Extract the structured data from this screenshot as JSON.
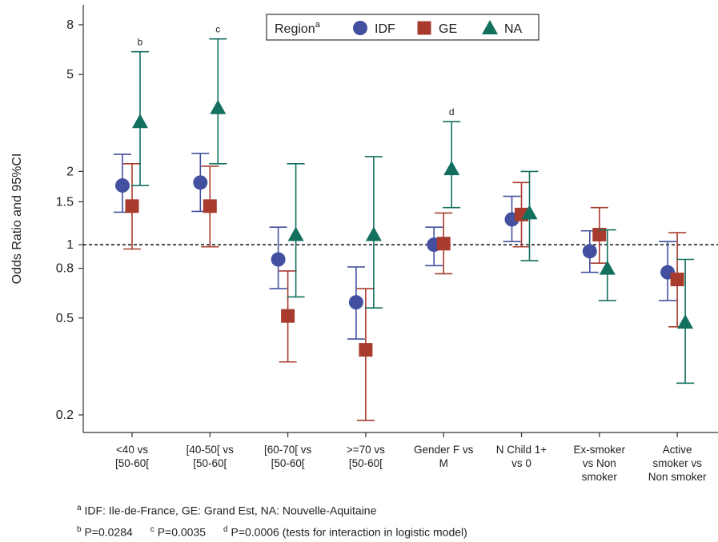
{
  "chart_data": {
    "type": "scatter",
    "ylabel": "Odds Ratio and 95%CI",
    "xlabel": "",
    "yscale": "log",
    "ylim": [
      0.17,
      9.5
    ],
    "yticks": [
      0.2,
      0.5,
      0.8,
      1,
      1.5,
      2,
      5,
      8
    ],
    "reference_line": 1,
    "categories": [
      [
        "<40 vs",
        "[50-60["
      ],
      [
        "[40-50[ vs",
        "[50-60["
      ],
      [
        "[60-70[ vs",
        "[50-60["
      ],
      [
        ">=70 vs",
        "[50-60["
      ],
      [
        "Gender F vs",
        "M"
      ],
      [
        "N Child 1+",
        "vs 0"
      ],
      [
        "Ex-smoker",
        "vs Non",
        "smoker"
      ],
      [
        "Active",
        "smoker vs",
        "Non smoker"
      ]
    ],
    "series": [
      {
        "name": "IDF",
        "color": "#4350a0",
        "marker": "circle",
        "values": [
          1.75,
          1.8,
          0.87,
          0.58,
          1.0,
          1.27,
          0.94,
          0.77
        ],
        "ci_low": [
          1.36,
          1.37,
          0.66,
          0.41,
          0.82,
          1.03,
          0.77,
          0.59
        ],
        "ci_high": [
          2.35,
          2.37,
          1.18,
          0.81,
          1.18,
          1.58,
          1.14,
          1.03
        ]
      },
      {
        "name": "GE",
        "color": "#a83b2e",
        "marker": "square",
        "values": [
          1.44,
          1.44,
          0.51,
          0.37,
          1.01,
          1.33,
          1.1,
          0.72
        ],
        "ci_low": [
          0.96,
          0.98,
          0.33,
          0.19,
          0.76,
          0.98,
          0.84,
          0.46
        ],
        "ci_high": [
          2.15,
          2.1,
          0.78,
          0.66,
          1.35,
          1.8,
          1.42,
          1.12
        ]
      },
      {
        "name": "NA",
        "color": "#13705f",
        "marker": "triangle",
        "values": [
          3.2,
          3.65,
          1.1,
          1.1,
          2.05,
          1.35,
          0.8,
          0.48
        ],
        "ci_low": [
          1.75,
          2.15,
          0.61,
          0.55,
          1.42,
          0.86,
          0.59,
          0.27
        ],
        "ci_high": [
          6.2,
          7.0,
          2.15,
          2.3,
          3.2,
          2.0,
          1.15,
          0.87
        ]
      }
    ],
    "significance_marks": [
      {
        "category_index": 0,
        "series": "NA",
        "text": "b"
      },
      {
        "category_index": 1,
        "series": "NA",
        "text": "c"
      },
      {
        "category_index": 4,
        "series": "NA",
        "text": "d"
      }
    ],
    "legend": {
      "title": "Region",
      "title_sup": "a",
      "placement": "top-center",
      "entries": [
        "IDF",
        "GE",
        "NA"
      ]
    },
    "footnotes": {
      "a_sup": "a",
      "a_text": "IDF: Ile-de-France, GE: Grand Est, NA: Nouvelle-Aquitaine",
      "b_sup": "b",
      "b_text": "P=0.0284",
      "c_sup": "c",
      "c_text": "P=0.0035",
      "d_sup": "d",
      "d_text": "P=0.0006 (tests for interaction in logistic model)"
    }
  }
}
